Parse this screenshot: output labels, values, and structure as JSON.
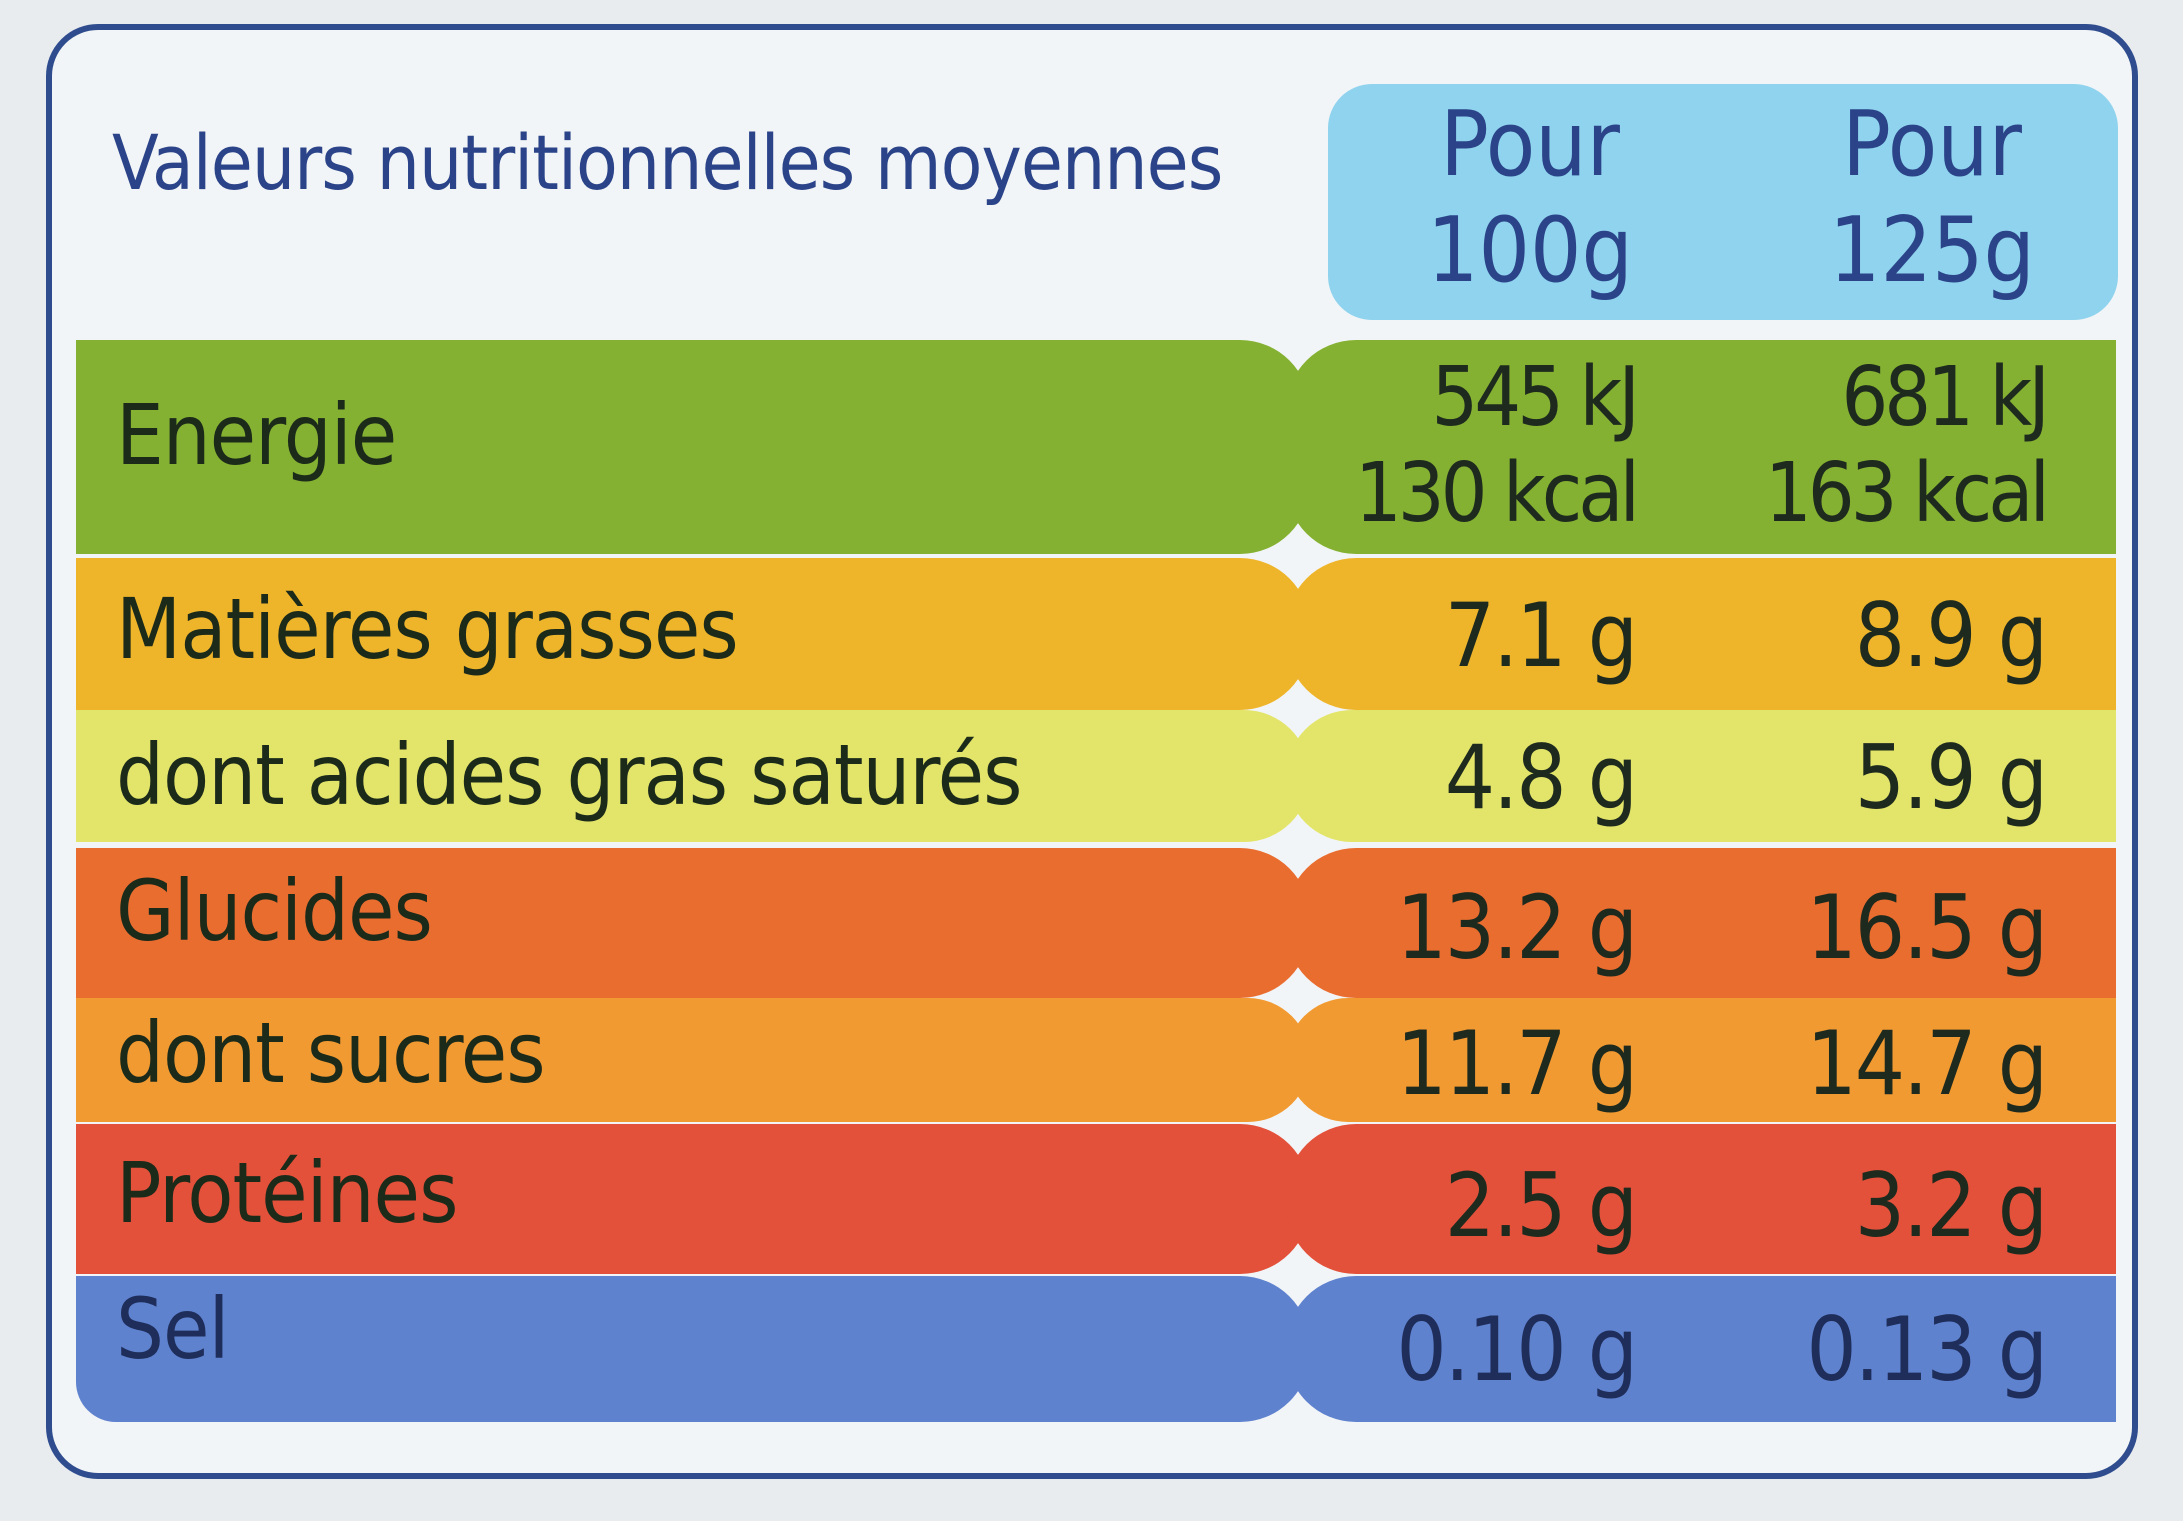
{
  "title": "Valeurs nutritionnelles moyennes",
  "columns": [
    {
      "line1": "Pour",
      "line2": "100g"
    },
    {
      "line1": "Pour",
      "line2": "125g"
    }
  ],
  "colors": {
    "frame": "#2f4d8e",
    "header": "#8fd3ee",
    "energy": "#84b132",
    "fat": "#efb52a",
    "saturated": "#e3e56a",
    "carbs": "#ea6d30",
    "sugars": "#f29a32",
    "protein": "#e3513a",
    "salt": "#5f82cf"
  },
  "rows": [
    {
      "id": "energy",
      "label": "Energie",
      "v100": [
        "545 kJ",
        "130 kcal"
      ],
      "v125": [
        "681 kJ",
        "163 kcal"
      ]
    },
    {
      "id": "fat",
      "label": "Matières grasses",
      "v100": "7.1 g",
      "v125": "8.9 g"
    },
    {
      "id": "saturated",
      "label": "dont acides gras saturés",
      "v100": "4.8 g",
      "v125": "5.9 g"
    },
    {
      "id": "carbs",
      "label": "Glucides",
      "v100": "13.2 g",
      "v125": "16.5 g"
    },
    {
      "id": "sugars",
      "label": "dont sucres",
      "v100": "11.7 g",
      "v125": "14.7 g"
    },
    {
      "id": "protein",
      "label": "Protéines",
      "v100": "2.5 g",
      "v125": "3.2 g"
    },
    {
      "id": "salt",
      "label": "Sel",
      "v100": "0.10 g",
      "v125": "0.13 g"
    }
  ]
}
